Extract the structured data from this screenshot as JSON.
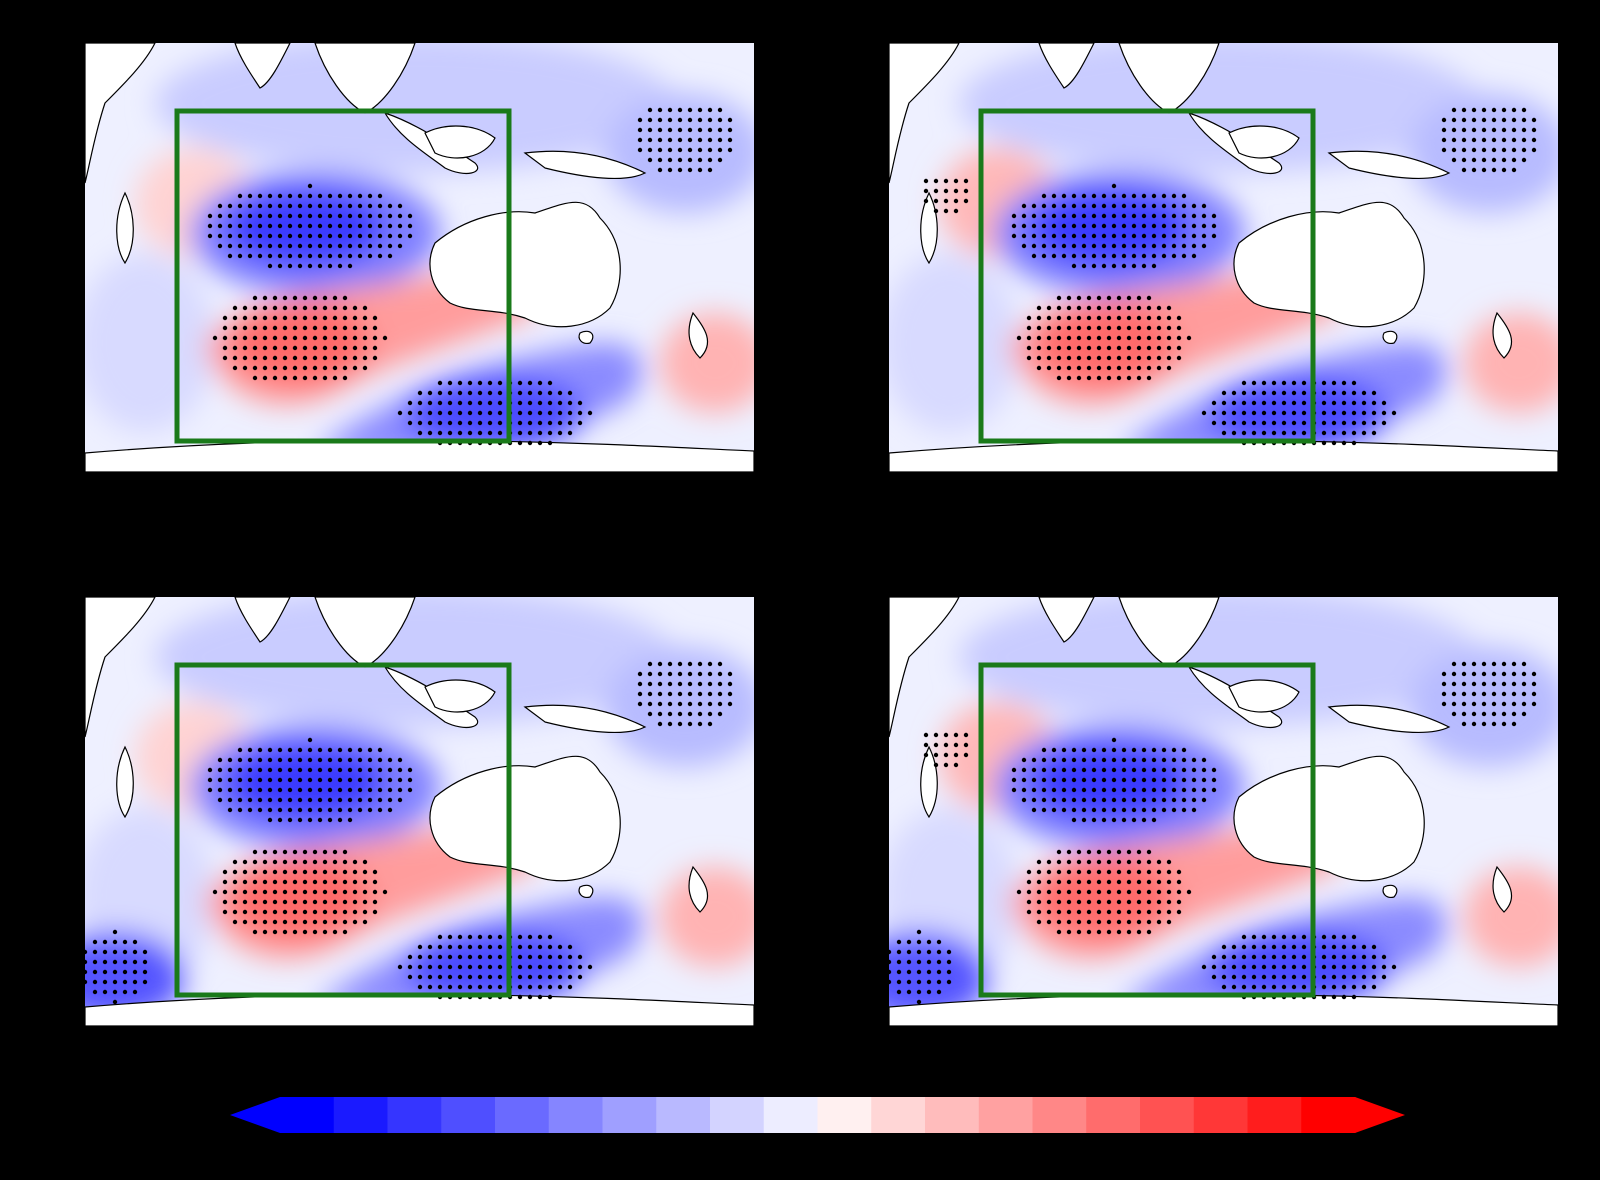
{
  "colors": {
    "background": "#000000",
    "box": "#1a7a1a",
    "land": "#ffffff",
    "coast": "#000000",
    "stipple": "#000000"
  },
  "colorbar": {
    "colors": [
      "#0000ff",
      "#1a1aff",
      "#3535ff",
      "#4f4fff",
      "#6a6aff",
      "#8585ff",
      "#9f9fff",
      "#b9b9ff",
      "#d3d3ff",
      "#ededff",
      "#fff0f0",
      "#ffd6d6",
      "#ffbcbc",
      "#ffa1a1",
      "#ff8787",
      "#ff6c6c",
      "#ff5252",
      "#ff3737",
      "#ff1d1d",
      "#ff0000"
    ],
    "extend": "both"
  },
  "panels": [
    {
      "id": "a",
      "has_nw_red_dots": false,
      "has_sw_blue_dots": false,
      "has_ne_blue_dots": true
    },
    {
      "id": "b",
      "has_nw_red_dots": true,
      "has_sw_blue_dots": false,
      "has_ne_blue_dots": true
    },
    {
      "id": "c",
      "has_nw_red_dots": false,
      "has_sw_blue_dots": true,
      "has_ne_blue_dots": true
    },
    {
      "id": "d",
      "has_nw_red_dots": true,
      "has_sw_blue_dots": true,
      "has_ne_blue_dots": true
    }
  ]
}
